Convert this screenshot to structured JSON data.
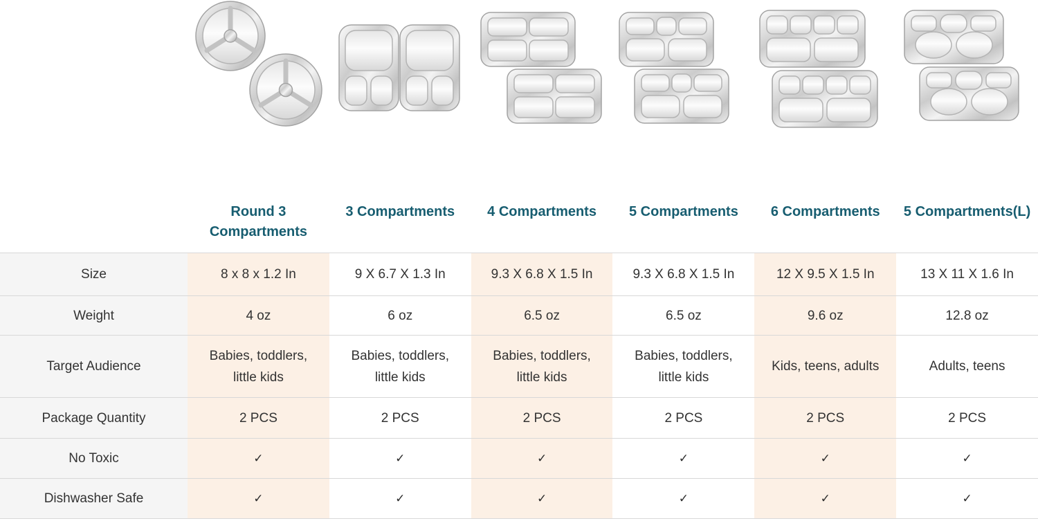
{
  "page": {
    "description": "Stainless steel divided tray product comparison table"
  },
  "products": [
    {
      "id": "round-3-compartments",
      "image": "round-3-compartment-plates"
    },
    {
      "id": "3-compartments",
      "image": "3-compartment-trays"
    },
    {
      "id": "4-compartments",
      "image": "4-compartment-trays"
    },
    {
      "id": "5-compartments",
      "image": "5-compartment-trays"
    },
    {
      "id": "6-compartments",
      "image": "6-compartment-trays"
    },
    {
      "id": "5-compartments-l",
      "image": "5-compartment-large-trays"
    }
  ],
  "table": {
    "columns": [
      "Round 3 Compartments",
      "3 Compartments",
      "4 Compartments",
      "5 Compartments",
      "6 Compartments",
      "5 Compartments(L)"
    ],
    "rows": [
      {
        "key": "size",
        "label": "Size",
        "values": [
          "8 x 8 x 1.2 In",
          "9 X 6.7 X 1.3 In",
          "9.3 X 6.8 X 1.5 In",
          "9.3 X 6.8 X 1.5 In",
          "12 X 9.5 X 1.5 In",
          "13 X 11 X 1.6 In"
        ]
      },
      {
        "key": "weight",
        "label": "Weight",
        "values": [
          "4 oz",
          "6 oz",
          "6.5 oz",
          "6.5 oz",
          "9.6 oz",
          "12.8 oz"
        ]
      },
      {
        "key": "target-audience",
        "label": "Target Audience",
        "values": [
          "Babies, toddlers, little kids",
          "Babies, toddlers, little kids",
          "Babies, toddlers, little kids",
          "Babies, toddlers, little kids",
          "Kids, teens, adults",
          "Adults, teens"
        ]
      },
      {
        "key": "package-quantity",
        "label": "Package Quantity",
        "values": [
          "2 PCS",
          "2 PCS",
          "2 PCS",
          "2 PCS",
          "2 PCS",
          "2 PCS"
        ]
      },
      {
        "key": "no-toxic",
        "label": "No Toxic",
        "check": true,
        "values": [
          "✓",
          "✓",
          "✓",
          "✓",
          "✓",
          "✓"
        ]
      },
      {
        "key": "dishwasher-safe",
        "label": "Dishwasher Safe",
        "check": true,
        "values": [
          "✓",
          "✓",
          "✓",
          "✓",
          "✓",
          "✓"
        ]
      }
    ]
  },
  "icons": {
    "check": "✓"
  },
  "colors": {
    "header_teal": "#175d70",
    "highlight_column_cream": "#fcf0e5",
    "label_column_gray": "#f5f5f5",
    "row_border": "#d8d8d8",
    "body_text": "#333333"
  }
}
